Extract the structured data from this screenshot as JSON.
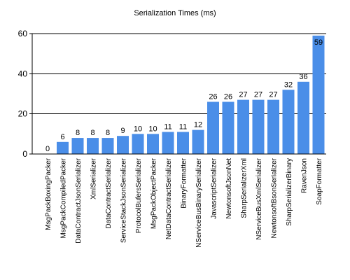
{
  "chart_data": {
    "type": "bar",
    "title": "Serialization Times (ms)",
    "xlabel": "",
    "ylabel": "",
    "ylim": [
      0,
      60
    ],
    "yticks": [
      0,
      20,
      40,
      60
    ],
    "grid": true,
    "legend": "none",
    "bar_color": "#4a8ee8",
    "categories": [
      "MsgPackBoxingPacker",
      "MsgPackCompiledPacker",
      "DataContractJsonSerializer",
      "XmlSerializer",
      "DataContractSerializer",
      "ServiceStackJsonSerializer",
      "ProtocolBufersSerializer",
      "MsgPackObjectPacker",
      "NetDataContractSerializer",
      "BinaryFormatter",
      "NServiceBusBinarySerializer",
      "JavascriptSerializer",
      "NewtonsoftJsonNet",
      "SharpSerializerXml",
      "NServiceBusXmlSerializer",
      "NewtonsoftBsonSerializer",
      "SharpSerializerBinary",
      "RavenJson",
      "SoapFormatter"
    ],
    "values": [
      0,
      6,
      8,
      8,
      8,
      9,
      10,
      10,
      11,
      11,
      12,
      26,
      26,
      27,
      27,
      27,
      32,
      36,
      59
    ]
  }
}
